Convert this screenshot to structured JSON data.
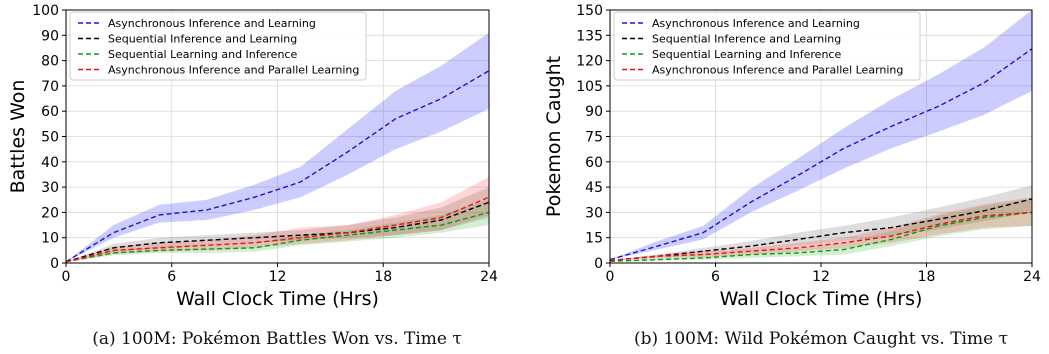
{
  "chart_data": [
    {
      "type": "line",
      "caption": "(a) 100M: Pokémon Battles Won vs. Time τ",
      "xlabel": "Wall Clock Time (Hrs)",
      "ylabel": "Battles Won",
      "xlim": [
        0,
        24
      ],
      "ylim": [
        0,
        100
      ],
      "xticks": [
        0,
        6,
        12,
        18,
        24
      ],
      "yticks": [
        0,
        10,
        20,
        30,
        40,
        50,
        60,
        70,
        80,
        90,
        100
      ],
      "grid": true,
      "legend": "top-left",
      "series": [
        {
          "name": "Asynchronous Inference and Learning",
          "color": "#1515d8",
          "band_color": "#0000ff",
          "x": [
            0,
            2.7,
            5.3,
            8,
            10.7,
            13.3,
            16,
            18.7,
            21.3,
            24
          ],
          "y": [
            0.5,
            12,
            19,
            21,
            26,
            32,
            44,
            57,
            65,
            76
          ],
          "lower": [
            0.5,
            10,
            16,
            17,
            21,
            26,
            35,
            45,
            52,
            61
          ],
          "upper": [
            0.5,
            15,
            23,
            25,
            31,
            38,
            53,
            68,
            78,
            91
          ]
        },
        {
          "name": "Sequential Inference and Learning",
          "color": "#000000",
          "band_color": "#555555",
          "x": [
            0,
            2.7,
            5.3,
            8,
            10.7,
            13.3,
            16,
            18.7,
            21.3,
            24
          ],
          "y": [
            0.5,
            6,
            8,
            9,
            10,
            11,
            12,
            14,
            17,
            24
          ],
          "lower": [
            0.5,
            4.5,
            6,
            7,
            8,
            9,
            10,
            11,
            13,
            18
          ],
          "upper": [
            0.5,
            7.5,
            10,
            11,
            12,
            13,
            15,
            18,
            22,
            30
          ]
        },
        {
          "name": "Sequential Learning and Inference",
          "color": "#119911",
          "band_color": "#22aa22",
          "x": [
            0,
            2.7,
            5.3,
            8,
            10.7,
            13.3,
            16,
            18.7,
            21.3,
            24
          ],
          "y": [
            0.5,
            4,
            5,
            5.5,
            6,
            9,
            11,
            13,
            15,
            20
          ],
          "lower": [
            0.5,
            3,
            4,
            4,
            4.5,
            7,
            8.5,
            10,
            12,
            15
          ],
          "upper": [
            0.5,
            5,
            6.5,
            7,
            8,
            11,
            13,
            16,
            19,
            25
          ]
        },
        {
          "name": "Asynchronous Inference and Parallel Learning",
          "color": "#ee1111",
          "band_color": "#ff3333",
          "x": [
            0,
            2.7,
            5.3,
            8,
            10.7,
            13.3,
            16,
            18.7,
            21.3,
            24
          ],
          "y": [
            0.5,
            5,
            6,
            7,
            8,
            10,
            12,
            15,
            18,
            26
          ],
          "lower": [
            0.5,
            3.5,
            4.5,
            5,
            6,
            7.5,
            9,
            11,
            13,
            19
          ],
          "upper": [
            0.5,
            6.5,
            8,
            9,
            11,
            14,
            15,
            19,
            24,
            34
          ]
        }
      ]
    },
    {
      "type": "line",
      "caption": "(b) 100M: Wild Pokémon Caught vs. Time τ",
      "xlabel": "Wall Clock Time (Hrs)",
      "ylabel": "Pokemon Caught",
      "xlim": [
        0,
        24
      ],
      "ylim": [
        0,
        150
      ],
      "xticks": [
        0,
        6,
        12,
        18,
        24
      ],
      "yticks": [
        0,
        15,
        30,
        45,
        60,
        75,
        90,
        105,
        120,
        135,
        150
      ],
      "grid": true,
      "legend": "top-left",
      "series": [
        {
          "name": "Asynchronous Inference and Learning",
          "color": "#1515d8",
          "band_color": "#0000ff",
          "x": [
            0,
            2.7,
            5.3,
            8,
            10.7,
            13.3,
            16,
            18.7,
            21.3,
            24
          ],
          "y": [
            2,
            10,
            18,
            36,
            52,
            68,
            81,
            93,
            107,
            127
          ],
          "lower": [
            2,
            8,
            14,
            30,
            43,
            56,
            68,
            78,
            88,
            102
          ],
          "upper": [
            2,
            13,
            22,
            44,
            62,
            80,
            97,
            112,
            128,
            150
          ]
        },
        {
          "name": "Sequential Inference and Learning",
          "color": "#000000",
          "band_color": "#555555",
          "x": [
            0,
            2.7,
            5.3,
            8,
            10.7,
            13.3,
            16,
            18.7,
            21.3,
            24
          ],
          "y": [
            1.5,
            4,
            7,
            10,
            14,
            18,
            21,
            26,
            31,
            38
          ],
          "lower": [
            1.5,
            3,
            5,
            7,
            10,
            13,
            16,
            20,
            25,
            30
          ],
          "upper": [
            1.5,
            5,
            9,
            13,
            18,
            22,
            27,
            33,
            39,
            46
          ]
        },
        {
          "name": "Sequential Learning and Inference",
          "color": "#119911",
          "band_color": "#22aa22",
          "x": [
            0,
            2.7,
            5.3,
            8,
            10.7,
            13.3,
            16,
            18.7,
            21.3,
            24
          ],
          "y": [
            1,
            2,
            3,
            5,
            6,
            8,
            14,
            22,
            27,
            30
          ],
          "lower": [
            1,
            1.5,
            2,
            3,
            4,
            5,
            10,
            16,
            20,
            22
          ],
          "upper": [
            1,
            3,
            5,
            7,
            9,
            12,
            19,
            28,
            34,
            38
          ]
        },
        {
          "name": "Asynchronous Inference and Parallel Learning",
          "color": "#ee1111",
          "band_color": "#ff3333",
          "x": [
            0,
            2.7,
            5.3,
            8,
            10.7,
            13.3,
            16,
            18.7,
            21.3,
            24
          ],
          "y": [
            1.5,
            4,
            5,
            7,
            9,
            12,
            16,
            23,
            28,
            30
          ],
          "lower": [
            1.5,
            3,
            3.5,
            5,
            7,
            9,
            12,
            17,
            21,
            22
          ],
          "upper": [
            1.5,
            5,
            7,
            9,
            12,
            15,
            21,
            29,
            35,
            39
          ]
        }
      ]
    }
  ]
}
